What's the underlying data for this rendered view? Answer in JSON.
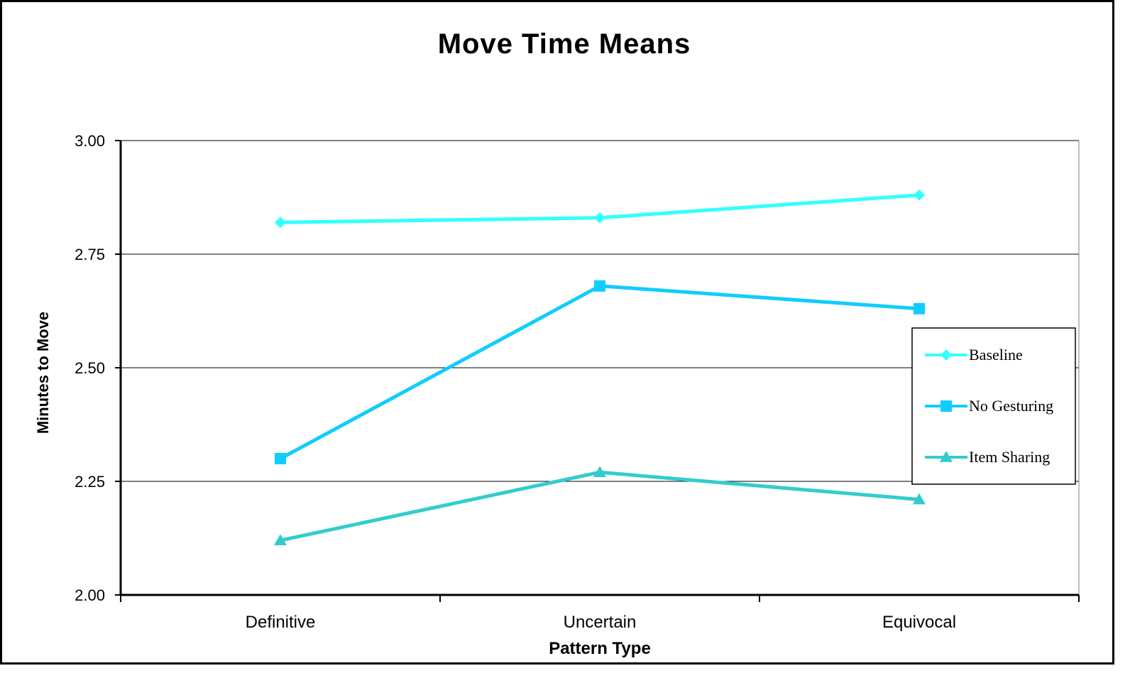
{
  "chart_data": {
    "type": "line",
    "title": "Move Time Means",
    "xlabel": "Pattern Type",
    "ylabel": "Minutes to Move",
    "categories": [
      "Definitive",
      "Uncertain",
      "Equivocal"
    ],
    "ylim": [
      2.0,
      3.0
    ],
    "yticks": [
      "2.00",
      "2.25",
      "2.50",
      "2.75",
      "3.00"
    ],
    "grid": true,
    "legend_position": "right",
    "series": [
      {
        "name": "Baseline",
        "values": [
          2.82,
          2.83,
          2.88
        ],
        "color": "#33FFFF",
        "marker": "diamond"
      },
      {
        "name": "No Gesturing",
        "values": [
          2.3,
          2.68,
          2.63
        ],
        "color": "#11CCFF",
        "marker": "square"
      },
      {
        "name": "Item Sharing",
        "values": [
          2.12,
          2.27,
          2.21
        ],
        "color": "#33CCCC",
        "marker": "triangle"
      }
    ]
  }
}
